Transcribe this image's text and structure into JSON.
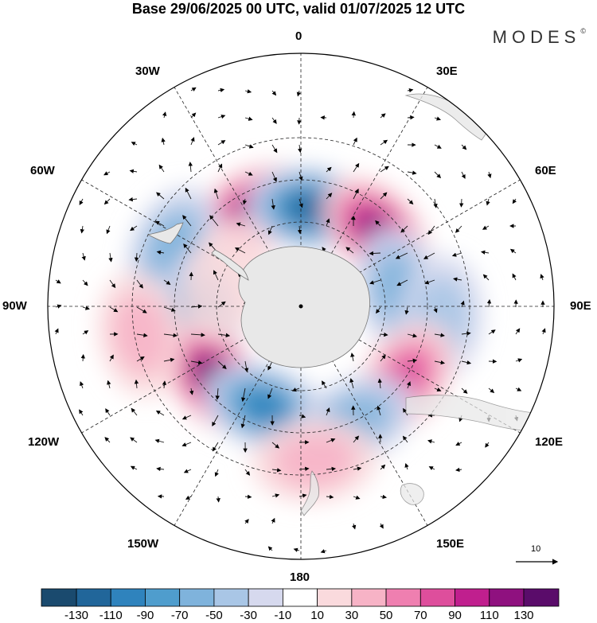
{
  "title": "Base 29/06/2025 00 UTC, valid 01/07/2025 12 UTC",
  "brand": "MODES",
  "brand_mark": "©",
  "longitude_labels": [
    "0",
    "30E",
    "60E",
    "90E",
    "120E",
    "150E",
    "180",
    "150W",
    "120W",
    "90W",
    "60W",
    "30W"
  ],
  "reference_vector_label": "10",
  "colorbar": {
    "ticks": [
      "-130",
      "-110",
      "-90",
      "-70",
      "-50",
      "-30",
      "-10",
      "10",
      "30",
      "50",
      "70",
      "90",
      "110",
      "130"
    ],
    "colors": [
      "#1a4a6e",
      "#21669a",
      "#2f83bd",
      "#4f9dcd",
      "#7fb3dc",
      "#a9c6e6",
      "#d6d9ee",
      "#ffffff",
      "#fadadd",
      "#f7b3c6",
      "#ef7fb0",
      "#de4e9c",
      "#c01f8e",
      "#8f117f",
      "#5a0c6a"
    ]
  },
  "anomaly_centers": [
    {
      "lon": -25,
      "lat": -52,
      "value": 120
    },
    {
      "lon": 5,
      "lat": -55,
      "value": -110
    },
    {
      "lon": 45,
      "lat": -52,
      "value": 120
    },
    {
      "lon": -65,
      "lat": -40,
      "value": -60
    },
    {
      "lon": 80,
      "lat": -55,
      "value": -60
    },
    {
      "lon": -95,
      "lat": -55,
      "value": -90
    },
    {
      "lon": 95,
      "lat": -40,
      "value": -40
    },
    {
      "lon": -130,
      "lat": -50,
      "value": 130
    },
    {
      "lon": 125,
      "lat": -45,
      "value": 70
    },
    {
      "lon": -160,
      "lat": -52,
      "value": -100
    },
    {
      "lon": 155,
      "lat": -45,
      "value": -60
    },
    {
      "lon": 175,
      "lat": -35,
      "value": 40
    },
    {
      "lon": -100,
      "lat": -32,
      "value": 30
    },
    {
      "lon": -70,
      "lat": -62,
      "value": 20
    }
  ]
}
